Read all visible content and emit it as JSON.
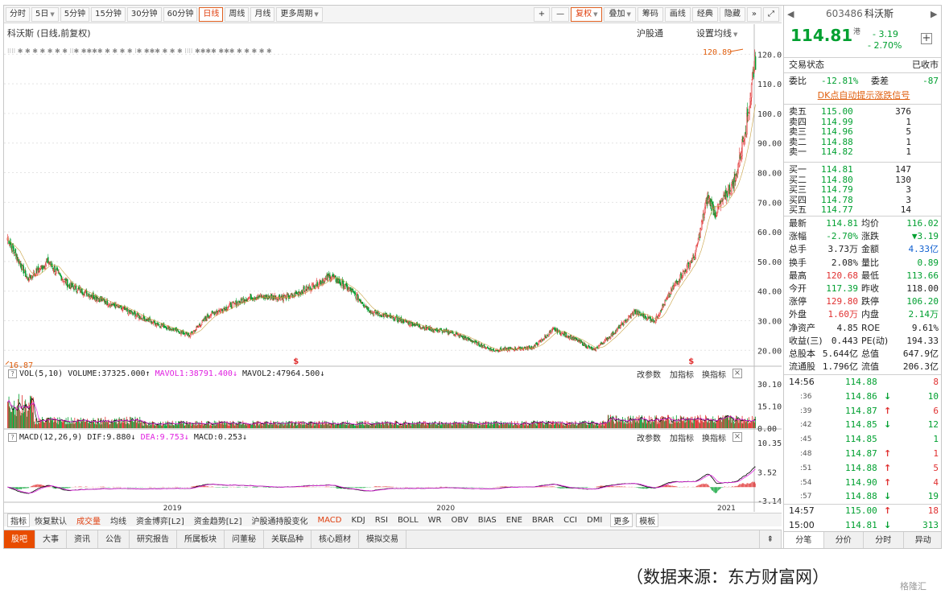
{
  "toolbar": {
    "periods": [
      "分时",
      "5日",
      "5分钟",
      "15分钟",
      "30分钟",
      "60分钟",
      "日线",
      "周线",
      "月线",
      "更多周期"
    ],
    "active_period": "日线",
    "right_tools": [
      "+",
      "—",
      "复权",
      "叠加",
      "筹码",
      "画线",
      "经典",
      "隐藏"
    ],
    "right_arrows": "»",
    "fullscreen": "⤢"
  },
  "chart": {
    "title": "科沃斯 (日线,前复权)",
    "hgt_label": "沪股通",
    "set_ma_label": "设置均线",
    "price_axis": [
      "120.00",
      "110.00",
      "100.00",
      "90.00",
      "80.00",
      "70.00",
      "60.00",
      "50.00",
      "40.00",
      "30.00",
      "20.00"
    ],
    "high_label": "120.89",
    "low_label": "16.87",
    "dividend_marker": "$",
    "info_marker": "✱",
    "info_marker_row": "⁝⁝⁝⁝ ✱ ✱ ✱ ✱ ✱ ✱ ✱ ⁝⁝✱ ✱✱✱✱ ✱ ✱ ✱ ✱ ⁝✱ ✱✱✱ ✱ ✱ ✱ ⁝⁝⁝⁝ ✱✱✱✱ ✱✱✱ ✱ ✱ ✱ ✱ ✱",
    "x_labels": [
      "2019",
      "2020",
      "2021"
    ]
  },
  "vol": {
    "label": "VOL(5,10)",
    "volume": "VOLUME:37325.000",
    "mavol1": "MAVOL1:38791.400",
    "mavol2": "MAVOL2:47964.500",
    "axis": [
      "30.10",
      "15.10",
      "0.00"
    ]
  },
  "macd": {
    "label": "MACD(12,26,9)",
    "dif": "DIF:9.880",
    "dea": "DEA:9.753",
    "macd": "MACD:0.253",
    "axis": [
      "10.35",
      "3.52",
      "-3.14"
    ]
  },
  "panel_buttons": {
    "change": "改参数",
    "add": "加指标",
    "switch": "换指标",
    "close": "×"
  },
  "indicator_tabs": [
    "指标",
    "恢复默认",
    "成交量",
    "均线",
    "资金博弈[L2]",
    "资金趋势[L2]",
    "沪股通持股变化",
    "MACD",
    "KDJ",
    "RSI",
    "BOLL",
    "WR",
    "OBV",
    "BIAS",
    "ENE",
    "BRAR",
    "CCI",
    "DMI",
    "更多",
    "模板"
  ],
  "bottom_tabs": [
    "股吧",
    "大事",
    "资讯",
    "公告",
    "研究报告",
    "所属板块",
    "问董秘",
    "关联品种",
    "核心题材",
    "模拟交易"
  ],
  "stock": {
    "code": "603486",
    "name": "科沃斯",
    "price": "114.81",
    "hk_tag": "港",
    "change": "- 3.19",
    "change_pct": "- 2.70%",
    "status_label": "交易状态",
    "status_value": "已收市",
    "ratio_label": "委比",
    "ratio_value": "-12.81%",
    "diff_label": "委差",
    "diff_value": "-87",
    "dk_link": "DK点自动提示涨跌信号"
  },
  "asks": [
    {
      "label": "卖五",
      "price": "115.00",
      "vol": "376"
    },
    {
      "label": "卖四",
      "price": "114.99",
      "vol": "1"
    },
    {
      "label": "卖三",
      "price": "114.96",
      "vol": "5"
    },
    {
      "label": "卖二",
      "price": "114.88",
      "vol": "1"
    },
    {
      "label": "卖一",
      "price": "114.82",
      "vol": "1"
    }
  ],
  "bids": [
    {
      "label": "买一",
      "price": "114.81",
      "vol": "147"
    },
    {
      "label": "买二",
      "price": "114.80",
      "vol": "130"
    },
    {
      "label": "买三",
      "price": "114.79",
      "vol": "3"
    },
    {
      "label": "买四",
      "price": "114.78",
      "vol": "3"
    },
    {
      "label": "买五",
      "price": "114.77",
      "vol": "14"
    }
  ],
  "stats": [
    {
      "l1": "最新",
      "v1": "114.81",
      "c1": "grn",
      "l2": "均价",
      "v2": "116.02",
      "c2": "grn"
    },
    {
      "l1": "涨幅",
      "v1": "-2.70%",
      "c1": "grn",
      "l2": "涨跌",
      "v2": "▼3.19",
      "c2": "grn"
    },
    {
      "l1": "总手",
      "v1": "3.73万",
      "c1": "",
      "l2": "金额",
      "v2": "4.33亿",
      "c2": "blu"
    },
    {
      "l1": "换手",
      "v1": "2.08%",
      "c1": "",
      "l2": "量比",
      "v2": "0.89",
      "c2": "grn"
    },
    {
      "l1": "最高",
      "v1": "120.68",
      "c1": "red",
      "l2": "最低",
      "v2": "113.66",
      "c2": "grn"
    },
    {
      "l1": "今开",
      "v1": "117.39",
      "c1": "grn",
      "l2": "昨收",
      "v2": "118.00",
      "c2": ""
    },
    {
      "l1": "涨停",
      "v1": "129.80",
      "c1": "red",
      "l2": "跌停",
      "v2": "106.20",
      "c2": "grn"
    },
    {
      "l1": "外盘",
      "v1": "1.60万",
      "c1": "red",
      "l2": "内盘",
      "v2": "2.14万",
      "c2": "grn"
    },
    {
      "l1": "净资产",
      "v1": "4.85",
      "c1": "",
      "l2": "ROE",
      "v2": "9.61%",
      "c2": ""
    },
    {
      "l1": "收益(三)",
      "v1": "0.443",
      "c1": "",
      "l2": "PE(动)",
      "v2": "194.33",
      "c2": ""
    },
    {
      "l1": "总股本",
      "v1": "5.644亿",
      "c1": "",
      "l2": "总值",
      "v2": "647.9亿",
      "c2": ""
    },
    {
      "l1": "流通股",
      "v1": "1.796亿",
      "c1": "",
      "l2": "流值",
      "v2": "206.3亿",
      "c2": ""
    }
  ],
  "ticks": [
    {
      "time": "14:56",
      "price": "114.88",
      "arrow": "",
      "vol": "8",
      "vc": "red"
    },
    {
      "time": ":36",
      "price": "114.86",
      "arrow": "↓",
      "vol": "10",
      "vc": "grn"
    },
    {
      "time": ":39",
      "price": "114.87",
      "arrow": "↑",
      "vol": "6",
      "vc": "red"
    },
    {
      "time": ":42",
      "price": "114.85",
      "arrow": "↓",
      "vol": "12",
      "vc": "grn"
    },
    {
      "time": ":45",
      "price": "114.85",
      "arrow": "",
      "vol": "1",
      "vc": "grn"
    },
    {
      "time": ":48",
      "price": "114.87",
      "arrow": "↑",
      "vol": "1",
      "vc": "red"
    },
    {
      "time": ":51",
      "price": "114.88",
      "arrow": "↑",
      "vol": "5",
      "vc": "red"
    },
    {
      "time": ":54",
      "price": "114.90",
      "arrow": "↑",
      "vol": "4",
      "vc": "red"
    },
    {
      "time": ":57",
      "price": "114.88",
      "arrow": "↓",
      "vol": "19",
      "vc": "grn"
    },
    {
      "time": "14:57",
      "price": "115.00",
      "arrow": "↑",
      "vol": "18",
      "vc": "red"
    },
    {
      "time": "15:00",
      "price": "114.81",
      "arrow": "↓",
      "vol": "313",
      "vc": "grn"
    }
  ],
  "right_bottom_tabs": [
    "分笔",
    "分价",
    "分时",
    "异动"
  ],
  "caption": "（数据来源：东方财富网）",
  "watermark": "格隆汇",
  "colors": {
    "up": "#e03030",
    "down": "#00a030",
    "ma_black": "#000000",
    "ma_magenta": "#e020e0",
    "accent": "#e84c00"
  },
  "chart_data": {
    "type": "candlestick",
    "price_range": [
      16.87,
      120.89
    ],
    "ylim": [
      16,
      122
    ],
    "keypoints": [
      {
        "x": "2018-01",
        "y": 58
      },
      {
        "x": "2018-02",
        "y": 44
      },
      {
        "x": "2018-03",
        "y": 50
      },
      {
        "x": "2018-04",
        "y": 42
      },
      {
        "x": "2018-06",
        "y": 36
      },
      {
        "x": "2018-08",
        "y": 30
      },
      {
        "x": "2018-10",
        "y": 25
      },
      {
        "x": "2018-11",
        "y": 32
      },
      {
        "x": "2019-01",
        "y": 38
      },
      {
        "x": "2019-03",
        "y": 38
      },
      {
        "x": "2019-05",
        "y": 45
      },
      {
        "x": "2019-06",
        "y": 40
      },
      {
        "x": "2019-07",
        "y": 33
      },
      {
        "x": "2019-08",
        "y": 31
      },
      {
        "x": "2019-10",
        "y": 27
      },
      {
        "x": "2019-11",
        "y": 26
      },
      {
        "x": "2020-01",
        "y": 20
      },
      {
        "x": "2020-03",
        "y": 21
      },
      {
        "x": "2020-04",
        "y": 27
      },
      {
        "x": "2020-05",
        "y": 24
      },
      {
        "x": "2020-06",
        "y": 20
      },
      {
        "x": "2020-07",
        "y": 26
      },
      {
        "x": "2020-08",
        "y": 33
      },
      {
        "x": "2020-09",
        "y": 30
      },
      {
        "x": "2020-10",
        "y": 42
      },
      {
        "x": "2020-11",
        "y": 52
      },
      {
        "x": "2020-11-20",
        "y": 72
      },
      {
        "x": "2020-12",
        "y": 66
      },
      {
        "x": "2021-01",
        "y": 78
      },
      {
        "x": "2021-01-20",
        "y": 100
      },
      {
        "x": "2021-02",
        "y": 120.68
      }
    ]
  }
}
